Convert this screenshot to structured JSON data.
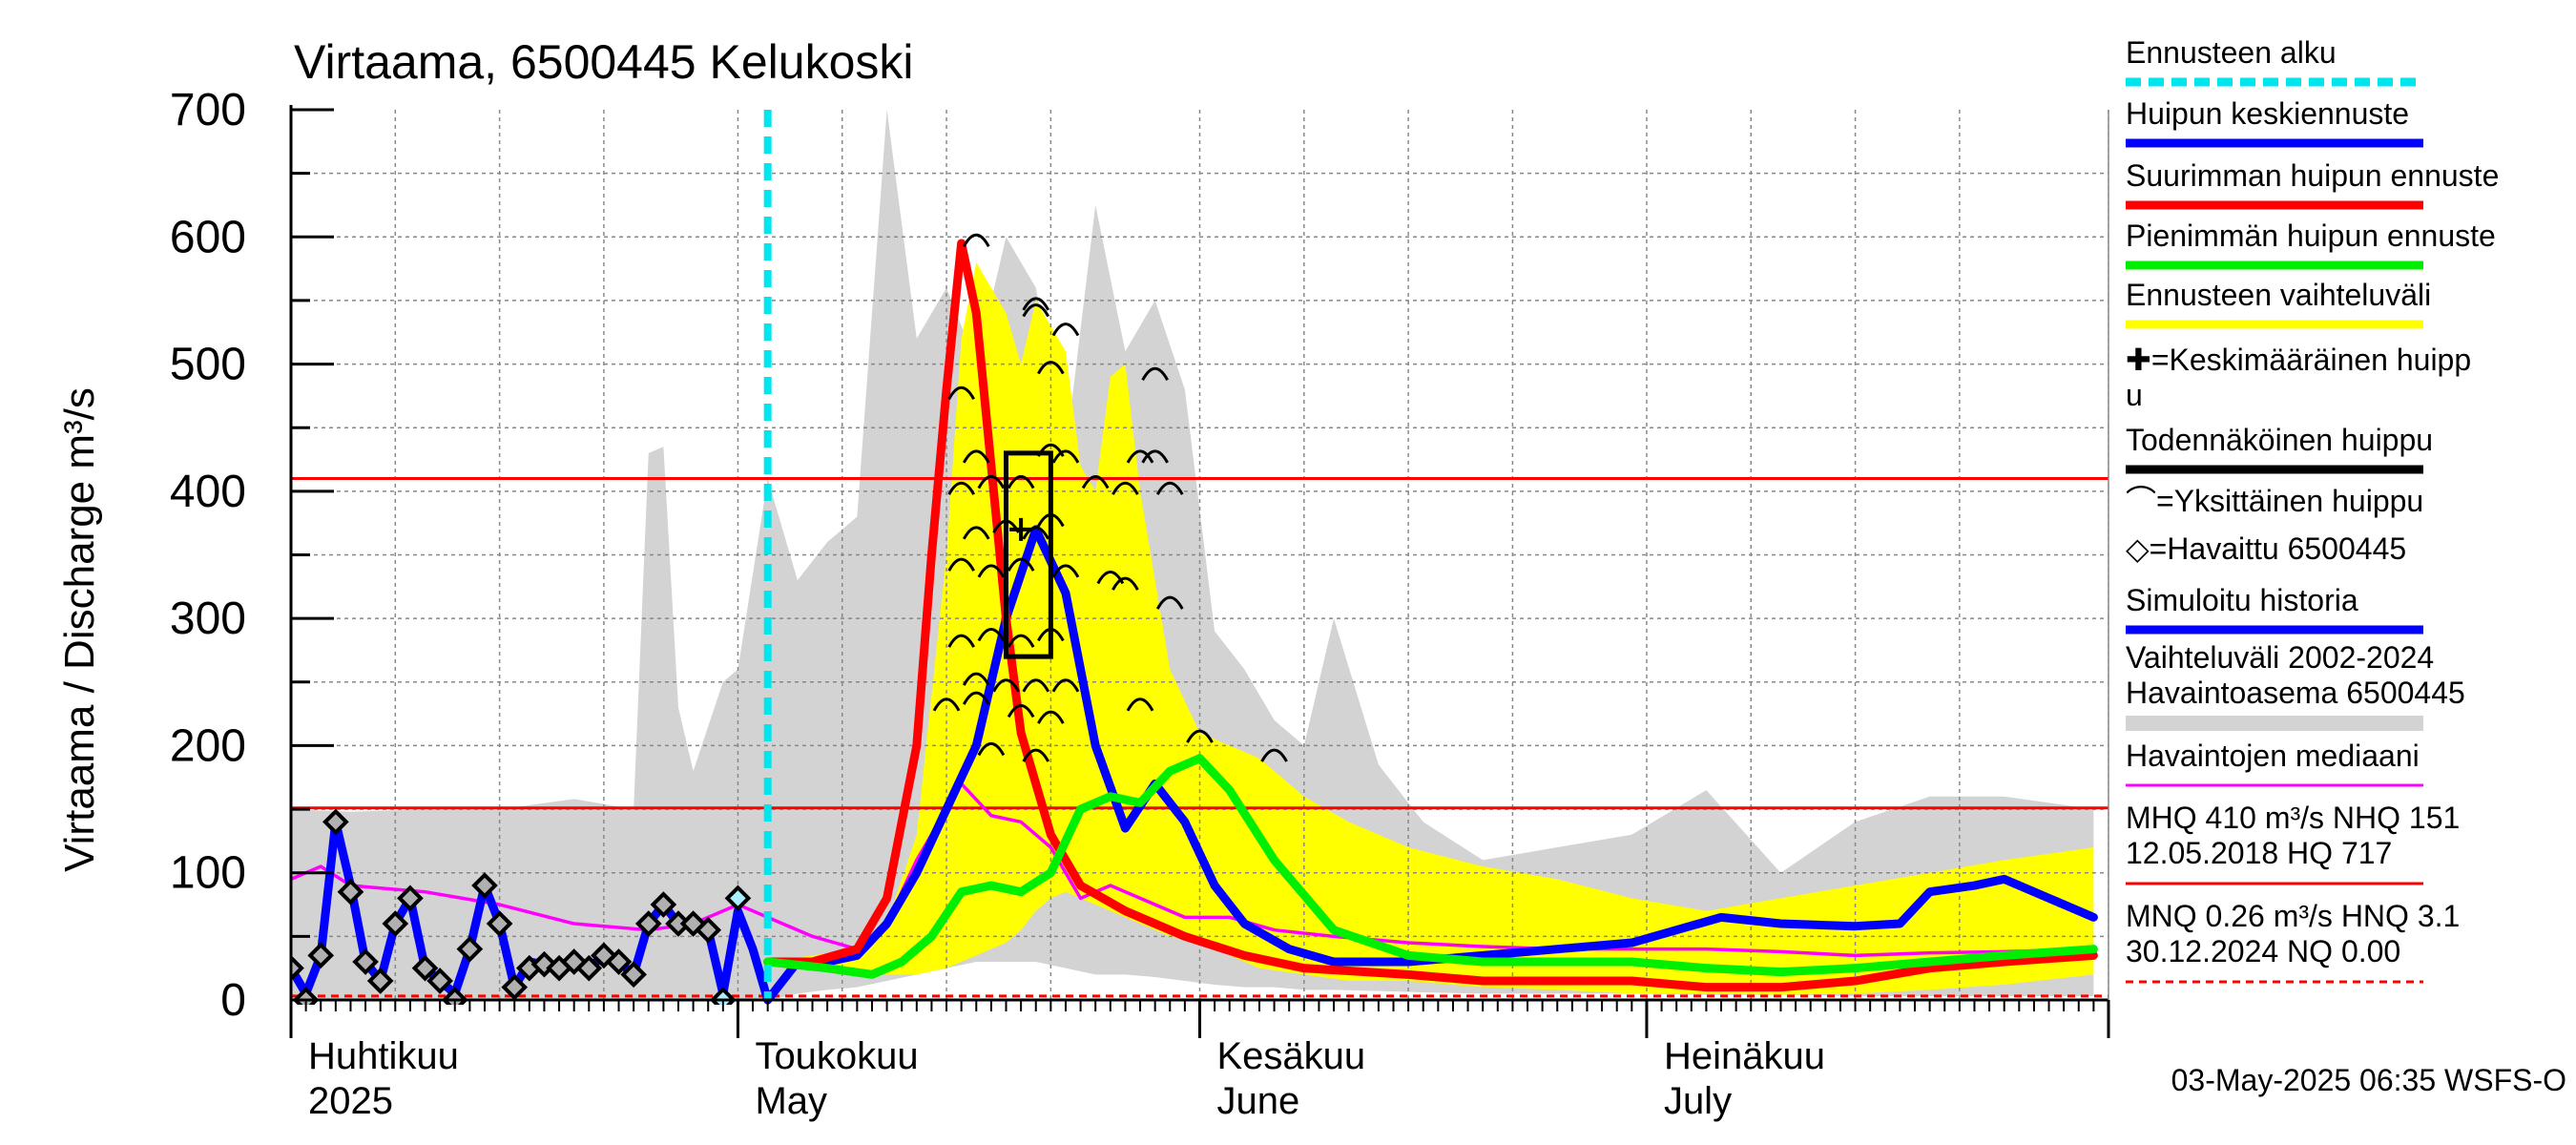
{
  "chart_data": {
    "type": "line",
    "title": "Virtaama, 6500445 Kelukoski",
    "ylabel": "Virtaama / Discharge   m³/s",
    "ylim": [
      0,
      700
    ],
    "y_ticks": [
      0,
      100,
      200,
      300,
      400,
      500,
      600,
      700
    ],
    "x_start": "2025-04-01",
    "x_end": "2025-07-31",
    "grid": true,
    "x_month_labels": [
      {
        "date": "2025-04-01",
        "fi": "Huhtikuu",
        "en": "2025"
      },
      {
        "date": "2025-05-01",
        "fi": "Toukokuu",
        "en": "May"
      },
      {
        "date": "2025-06-01",
        "fi": "Kesäkuu",
        "en": "June"
      },
      {
        "date": "2025-07-01",
        "fi": "Heinäkuu",
        "en": "July"
      }
    ],
    "reference_lines": [
      {
        "value": 410,
        "color": "#ff0000"
      },
      {
        "value": 151,
        "color": "#ff0000"
      },
      {
        "value": 3.1,
        "color": "#ff0000",
        "dashed": true
      }
    ],
    "forecast_start": "2025-05-03",
    "historical_range": {
      "name": "Vaihteluväli 2002-2024 Havaintoasema 6500445",
      "color": "#d3d3d3",
      "x": [
        "2025-04-01",
        "2025-04-05",
        "2025-04-10",
        "2025-04-15",
        "2025-04-20",
        "2025-04-24",
        "2025-04-25",
        "2025-04-26",
        "2025-04-27",
        "2025-04-28",
        "2025-04-30",
        "2025-05-01",
        "2025-05-03",
        "2025-05-05",
        "2025-05-07",
        "2025-05-09",
        "2025-05-11",
        "2025-05-13",
        "2025-05-15",
        "2025-05-17",
        "2025-05-19",
        "2025-05-21",
        "2025-05-23",
        "2025-05-25",
        "2025-05-27",
        "2025-05-29",
        "2025-05-31",
        "2025-06-02",
        "2025-06-04",
        "2025-06-06",
        "2025-06-08",
        "2025-06-10",
        "2025-06-13",
        "2025-06-16",
        "2025-06-20",
        "2025-06-25",
        "2025-06-30",
        "2025-07-05",
        "2025-07-10",
        "2025-07-15",
        "2025-07-20",
        "2025-07-25",
        "2025-07-31"
      ],
      "upper": [
        150,
        148,
        150,
        150,
        158,
        150,
        430,
        435,
        230,
        180,
        250,
        260,
        410,
        330,
        360,
        380,
        700,
        520,
        560,
        500,
        600,
        560,
        430,
        625,
        510,
        550,
        480,
        290,
        260,
        220,
        200,
        300,
        185,
        140,
        110,
        120,
        130,
        165,
        100,
        140,
        160,
        160,
        150
      ],
      "lower": [
        0,
        0,
        0,
        0,
        0,
        0,
        0,
        0,
        0,
        0,
        0,
        0,
        0,
        5,
        8,
        10,
        15,
        20,
        25,
        30,
        30,
        30,
        25,
        20,
        20,
        18,
        15,
        12,
        10,
        10,
        8,
        8,
        7,
        6,
        5,
        5,
        5,
        4,
        4,
        3,
        3,
        3,
        3
      ]
    },
    "forecast_band": {
      "name": "Ennusteen vaihteluväli",
      "color": "#ffff00",
      "x": [
        "2025-05-03",
        "2025-05-06",
        "2025-05-09",
        "2025-05-11",
        "2025-05-13",
        "2025-05-15",
        "2025-05-16",
        "2025-05-17",
        "2025-05-18",
        "2025-05-19",
        "2025-05-20",
        "2025-05-21",
        "2025-05-22",
        "2025-05-23",
        "2025-05-24",
        "2025-05-25",
        "2025-05-26",
        "2025-05-27",
        "2025-05-28",
        "2025-05-29",
        "2025-05-30",
        "2025-06-01",
        "2025-06-03",
        "2025-06-05",
        "2025-06-08",
        "2025-06-11",
        "2025-06-15",
        "2025-06-20",
        "2025-06-25",
        "2025-06-30",
        "2025-07-05",
        "2025-07-10",
        "2025-07-15",
        "2025-07-20",
        "2025-07-25",
        "2025-07-31"
      ],
      "upper": [
        30,
        35,
        40,
        60,
        130,
        350,
        520,
        580,
        560,
        540,
        500,
        550,
        530,
        510,
        420,
        400,
        490,
        500,
        400,
        330,
        260,
        210,
        200,
        190,
        160,
        140,
        120,
        105,
        95,
        80,
        70,
        80,
        90,
        100,
        110,
        120
      ],
      "lower": [
        30,
        28,
        25,
        20,
        20,
        25,
        30,
        35,
        40,
        45,
        55,
        70,
        80,
        85,
        80,
        75,
        70,
        65,
        60,
        55,
        50,
        45,
        35,
        25,
        20,
        15,
        15,
        10,
        8,
        5,
        5,
        4,
        5,
        8,
        12,
        20
      ]
    },
    "series": [
      {
        "name": "Havaintojen mediaani",
        "color": "#ff00ff",
        "x": [
          "2025-04-01",
          "2025-04-03",
          "2025-04-05",
          "2025-04-10",
          "2025-04-15",
          "2025-04-20",
          "2025-04-25",
          "2025-04-28",
          "2025-05-01",
          "2025-05-03",
          "2025-05-06",
          "2025-05-09",
          "2025-05-11",
          "2025-05-13",
          "2025-05-15",
          "2025-05-16",
          "2025-05-18",
          "2025-05-20",
          "2025-05-22",
          "2025-05-24",
          "2025-05-26",
          "2025-05-28",
          "2025-05-31",
          "2025-06-03",
          "2025-06-06",
          "2025-06-10",
          "2025-06-15",
          "2025-06-20",
          "2025-06-25",
          "2025-06-30",
          "2025-07-05",
          "2025-07-10",
          "2025-07-15",
          "2025-07-20",
          "2025-07-25",
          "2025-07-31"
        ],
        "y": [
          95,
          105,
          90,
          85,
          75,
          60,
          55,
          60,
          75,
          65,
          50,
          40,
          60,
          110,
          150,
          170,
          145,
          140,
          120,
          80,
          90,
          80,
          65,
          65,
          55,
          50,
          45,
          42,
          40,
          40,
          40,
          38,
          35,
          37,
          38,
          40
        ]
      },
      {
        "name": "Simuloitu historia",
        "color": "#0000ff",
        "x": [
          "2025-04-01",
          "2025-04-02",
          "2025-04-03",
          "2025-04-04",
          "2025-04-05",
          "2025-04-06",
          "2025-04-07",
          "2025-04-08",
          "2025-04-09",
          "2025-04-10",
          "2025-04-11",
          "2025-04-12",
          "2025-04-13",
          "2025-04-14",
          "2025-04-15",
          "2025-04-16",
          "2025-04-17",
          "2025-04-18",
          "2025-04-19",
          "2025-04-20",
          "2025-04-21",
          "2025-04-22",
          "2025-04-23",
          "2025-04-24",
          "2025-04-25",
          "2025-04-26",
          "2025-04-27",
          "2025-04-28",
          "2025-04-29",
          "2025-04-30",
          "2025-05-01",
          "2025-05-02",
          "2025-05-03"
        ],
        "y": [
          25,
          5,
          35,
          140,
          90,
          30,
          15,
          60,
          80,
          25,
          15,
          5,
          40,
          90,
          60,
          10,
          30,
          28,
          25,
          30,
          25,
          35,
          30,
          20,
          60,
          75,
          60,
          60,
          55,
          5,
          70,
          40,
          0
        ]
      },
      {
        "name": "Huipun keskiennuste",
        "color": "#0000ff",
        "x": [
          "2025-05-03",
          "2025-05-05",
          "2025-05-07",
          "2025-05-09",
          "2025-05-11",
          "2025-05-13",
          "2025-05-15",
          "2025-05-17",
          "2025-05-19",
          "2025-05-21",
          "2025-05-23",
          "2025-05-25",
          "2025-05-27",
          "2025-05-29",
          "2025-05-31",
          "2025-06-02",
          "2025-06-04",
          "2025-06-07",
          "2025-06-10",
          "2025-06-15",
          "2025-06-20",
          "2025-06-25",
          "2025-06-30",
          "2025-07-03",
          "2025-07-06",
          "2025-07-10",
          "2025-07-15",
          "2025-07-18",
          "2025-07-20",
          "2025-07-23",
          "2025-07-25",
          "2025-07-28",
          "2025-07-31"
        ],
        "y": [
          0,
          30,
          30,
          35,
          60,
          100,
          150,
          200,
          300,
          370,
          320,
          200,
          135,
          170,
          140,
          90,
          60,
          40,
          30,
          30,
          35,
          40,
          45,
          55,
          65,
          60,
          58,
          60,
          85,
          90,
          95,
          80,
          65
        ]
      },
      {
        "name": "Suurimman huipun ennuste",
        "color": "#ff0000",
        "x": [
          "2025-05-03",
          "2025-05-06",
          "2025-05-09",
          "2025-05-11",
          "2025-05-13",
          "2025-05-14",
          "2025-05-15",
          "2025-05-16",
          "2025-05-17",
          "2025-05-18",
          "2025-05-19",
          "2025-05-20",
          "2025-05-22",
          "2025-05-24",
          "2025-05-27",
          "2025-05-31",
          "2025-06-04",
          "2025-06-08",
          "2025-06-15",
          "2025-06-20",
          "2025-06-25",
          "2025-06-30",
          "2025-07-05",
          "2025-07-10",
          "2025-07-15",
          "2025-07-20",
          "2025-07-25",
          "2025-07-31"
        ],
        "y": [
          30,
          30,
          40,
          80,
          200,
          350,
          480,
          595,
          540,
          420,
          300,
          210,
          130,
          90,
          70,
          50,
          35,
          25,
          20,
          15,
          15,
          15,
          10,
          10,
          15,
          25,
          30,
          35
        ]
      },
      {
        "name": "Pienimmän huipun ennuste",
        "color": "#00ee00",
        "x": [
          "2025-05-03",
          "2025-05-07",
          "2025-05-10",
          "2025-05-12",
          "2025-05-14",
          "2025-05-16",
          "2025-05-18",
          "2025-05-20",
          "2025-05-22",
          "2025-05-24",
          "2025-05-26",
          "2025-05-28",
          "2025-05-30",
          "2025-06-01",
          "2025-06-03",
          "2025-06-06",
          "2025-06-10",
          "2025-06-15",
          "2025-06-20",
          "2025-06-25",
          "2025-06-30",
          "2025-07-05",
          "2025-07-10",
          "2025-07-15",
          "2025-07-20",
          "2025-07-25",
          "2025-07-31"
        ],
        "y": [
          30,
          25,
          20,
          30,
          50,
          85,
          90,
          85,
          100,
          150,
          160,
          155,
          180,
          190,
          165,
          110,
          55,
          35,
          30,
          30,
          30,
          25,
          22,
          25,
          30,
          35,
          40
        ]
      }
    ],
    "observed": {
      "name": "Havaittu 6500445",
      "x": [
        "2025-04-01",
        "2025-04-02",
        "2025-04-03",
        "2025-04-04",
        "2025-04-05",
        "2025-04-06",
        "2025-04-07",
        "2025-04-08",
        "2025-04-09",
        "2025-04-10",
        "2025-04-11",
        "2025-04-12",
        "2025-04-13",
        "2025-04-14",
        "2025-04-15",
        "2025-04-16",
        "2025-04-17",
        "2025-04-18",
        "2025-04-19",
        "2025-04-20",
        "2025-04-21",
        "2025-04-22",
        "2025-04-23",
        "2025-04-24",
        "2025-04-25",
        "2025-04-26",
        "2025-04-27",
        "2025-04-28",
        "2025-04-29",
        "2025-04-30",
        "2025-05-01"
      ],
      "y": [
        25,
        0,
        35,
        140,
        85,
        30,
        15,
        60,
        80,
        25,
        15,
        0,
        40,
        90,
        60,
        10,
        25,
        28,
        25,
        30,
        25,
        35,
        30,
        20,
        60,
        75,
        60,
        60,
        55,
        0,
        80
      ]
    },
    "peak_box": {
      "name": "Todennäköinen huippu",
      "x0": "2025-05-19",
      "x1": "2025-05-22",
      "y0": 270,
      "y1": 430
    },
    "mean_peak": {
      "name": "Keskimääräinen huippu",
      "x": "2025-05-20",
      "y": 370
    },
    "single_peaks": {
      "name": "Yksittäinen huippu",
      "points": [
        [
          "2025-05-17",
          600
        ],
        [
          "2025-05-21",
          550
        ],
        [
          "2025-05-21",
          545
        ],
        [
          "2025-05-23",
          530
        ],
        [
          "2025-05-22",
          500
        ],
        [
          "2025-05-16",
          480
        ],
        [
          "2025-05-29",
          495
        ],
        [
          "2025-05-17",
          430
        ],
        [
          "2025-05-22",
          435
        ],
        [
          "2025-05-23",
          430
        ],
        [
          "2025-05-28",
          430
        ],
        [
          "2025-05-29",
          430
        ],
        [
          "2025-05-16",
          405
        ],
        [
          "2025-05-18",
          410
        ],
        [
          "2025-05-20",
          410
        ],
        [
          "2025-05-25",
          410
        ],
        [
          "2025-05-27",
          405
        ],
        [
          "2025-05-30",
          405
        ],
        [
          "2025-05-17",
          370
        ],
        [
          "2025-05-19",
          375
        ],
        [
          "2025-05-21",
          370
        ],
        [
          "2025-05-22",
          380
        ],
        [
          "2025-05-16",
          345
        ],
        [
          "2025-05-18",
          340
        ],
        [
          "2025-05-20",
          345
        ],
        [
          "2025-05-23",
          340
        ],
        [
          "2025-05-26",
          335
        ],
        [
          "2025-05-27",
          330
        ],
        [
          "2025-05-30",
          315
        ],
        [
          "2025-05-16",
          285
        ],
        [
          "2025-05-18",
          290
        ],
        [
          "2025-05-20",
          285
        ],
        [
          "2025-05-22",
          290
        ],
        [
          "2025-05-17",
          255
        ],
        [
          "2025-05-19",
          250
        ],
        [
          "2025-05-21",
          250
        ],
        [
          "2025-05-23",
          250
        ],
        [
          "2025-05-15",
          235
        ],
        [
          "2025-05-17",
          240
        ],
        [
          "2025-05-20",
          230
        ],
        [
          "2025-05-22",
          225
        ],
        [
          "2025-05-28",
          235
        ],
        [
          "2025-05-18",
          200
        ],
        [
          "2025-05-21",
          195
        ],
        [
          "2025-06-01",
          210
        ],
        [
          "2025-06-06",
          195
        ]
      ]
    },
    "legend": [
      {
        "label": "Ennusteen alku",
        "color": "#00e5ee",
        "style": "dashed"
      },
      {
        "label": "Huipun keskiennuste",
        "color": "#0000ff",
        "style": "solid"
      },
      {
        "label": "Suurimman huipun ennuste",
        "color": "#ff0000",
        "style": "solid"
      },
      {
        "label": "Pienimmän huipun ennuste",
        "color": "#00ee00",
        "style": "solid"
      },
      {
        "label": "Ennusteen vaihteluväli",
        "color": "#ffff00",
        "style": "solid"
      },
      {
        "label": "✚=Keskimääräinen huipp",
        "label2": "u",
        "color": "#000000",
        "style": "none"
      },
      {
        "label": "Todennäköinen huippu",
        "color": "#000000",
        "style": "solid"
      },
      {
        "label": "⌒=Yksittäinen huippu",
        "color": "#000000",
        "style": "none"
      },
      {
        "label": "◇=Havaittu 6500445",
        "color": "#000000",
        "style": "none"
      },
      {
        "label": "Simuloitu historia",
        "color": "#0000ff",
        "style": "solid"
      },
      {
        "label": "Vaihteluväli 2002-2024",
        "label2": " Havaintoasema 6500445",
        "color": "#d3d3d3",
        "style": "solid"
      },
      {
        "label": "Havaintojen mediaani",
        "color": "#ff00ff",
        "style": "thin"
      },
      {
        "label": "MHQ  410 m³/s NHQ  151",
        "label2": "12.05.2018 HQ  717",
        "color": "#ff0000",
        "style": "thin"
      },
      {
        "label": "MNQ 0.26 m³/s HNQ  3.1",
        "label2": "30.12.2024 NQ 0.00",
        "color": "#ff0000",
        "style": "dashed-thin"
      }
    ],
    "footer": "03-May-2025 06:35 WSFS-O"
  }
}
